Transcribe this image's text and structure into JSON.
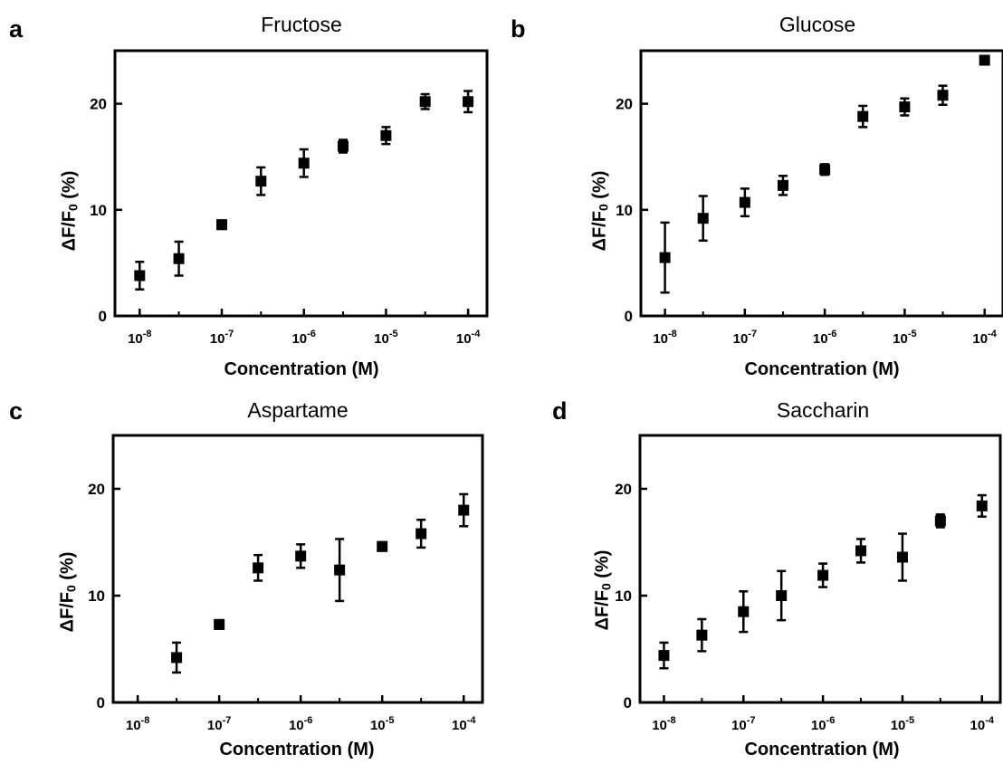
{
  "chart_data": [
    {
      "panel": "a",
      "title": "Fructose",
      "type": "scatter",
      "xlabel": "Concentration (M)",
      "ylabel": "ΔF/F0 (%)",
      "xscale": "log",
      "xlim": [
        5e-09,
        0.00017
      ],
      "ylim": [
        0,
        25
      ],
      "xticks": [
        "10-8",
        "10-7",
        "10-6",
        "10-5",
        "10-4"
      ],
      "yticks": [
        0,
        10,
        20
      ],
      "grid": false,
      "x": [
        1e-08,
        3e-08,
        1e-07,
        3e-07,
        1e-06,
        3e-06,
        1e-05,
        3e-05,
        0.0001
      ],
      "y": [
        3.8,
        5.4,
        8.6,
        12.7,
        14.4,
        16.0,
        17.0,
        20.2,
        20.2
      ],
      "error": [
        1.3,
        1.6,
        0.4,
        1.3,
        1.3,
        0.6,
        0.8,
        0.7,
        1.0
      ]
    },
    {
      "panel": "b",
      "title": "Glucose",
      "type": "scatter",
      "xlabel": "Concentration (M)",
      "ylabel": "ΔF/F0 (%)",
      "xscale": "log",
      "xlim": [
        5e-09,
        0.00017
      ],
      "ylim": [
        0,
        25
      ],
      "xticks": [
        "10-8",
        "10-7",
        "10-6",
        "10-5",
        "10-4"
      ],
      "yticks": [
        0,
        10,
        20
      ],
      "grid": false,
      "x": [
        1e-08,
        3e-08,
        1e-07,
        3e-07,
        1e-06,
        3e-06,
        1e-05,
        3e-05,
        0.0001
      ],
      "y": [
        5.5,
        9.2,
        10.7,
        12.3,
        13.8,
        18.8,
        19.7,
        20.8,
        24.1
      ],
      "error": [
        3.3,
        2.1,
        1.3,
        0.9,
        0.5,
        1.0,
        0.8,
        0.9,
        0.4
      ]
    },
    {
      "panel": "c",
      "title": "Aspartame",
      "type": "scatter",
      "xlabel": "Concentration (M)",
      "ylabel": "ΔF/F0 (%)",
      "xscale": "log",
      "xlim": [
        5e-09,
        0.00017
      ],
      "ylim": [
        0,
        25
      ],
      "xticks": [
        "10-8",
        "10-7",
        "10-6",
        "10-5",
        "10-4"
      ],
      "yticks": [
        0,
        10,
        20
      ],
      "grid": false,
      "x": [
        3e-08,
        1e-07,
        3e-07,
        1e-06,
        3e-06,
        1e-05,
        3e-05,
        0.0001
      ],
      "y": [
        4.2,
        7.3,
        12.6,
        13.7,
        12.4,
        14.6,
        15.8,
        18.0
      ],
      "error": [
        1.4,
        0.4,
        1.2,
        1.1,
        2.9,
        0.4,
        1.3,
        1.5
      ]
    },
    {
      "panel": "d",
      "title": "Saccharin",
      "type": "scatter",
      "xlabel": "Concentration (M)",
      "ylabel": "ΔF/F0 (%)",
      "xscale": "log",
      "xlim": [
        5e-09,
        0.00017
      ],
      "ylim": [
        0,
        25
      ],
      "xticks": [
        "10-8",
        "10-7",
        "10-6",
        "10-5",
        "10-4"
      ],
      "yticks": [
        0,
        10,
        20
      ],
      "grid": false,
      "x": [
        1e-08,
        3e-08,
        1e-07,
        3e-07,
        1e-06,
        3e-06,
        1e-05,
        3e-05,
        0.0001
      ],
      "y": [
        4.4,
        6.3,
        8.5,
        10.0,
        11.9,
        14.2,
        13.6,
        17.0,
        18.4
      ],
      "error": [
        1.2,
        1.5,
        1.9,
        2.3,
        1.1,
        1.1,
        2.2,
        0.6,
        1.0
      ]
    }
  ]
}
